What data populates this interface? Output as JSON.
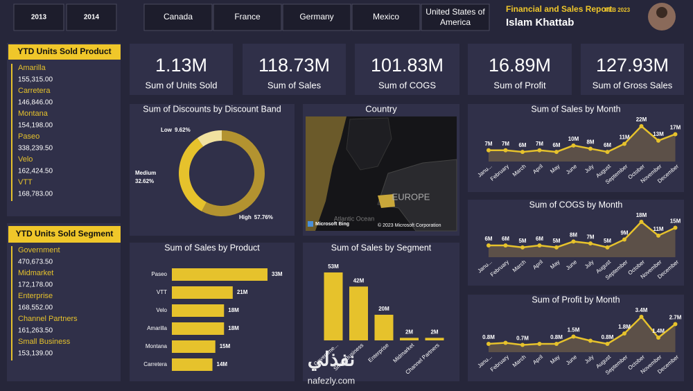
{
  "header": {
    "title": "Financial and Sales Report",
    "date": "FEB 2023",
    "author": "Islam Khattab"
  },
  "filters": {
    "years": [
      "2013",
      "2014"
    ],
    "countries": [
      "Canada",
      "France",
      "Germany",
      "Mexico",
      "United States of America"
    ]
  },
  "kpis": [
    {
      "value": "1.13M",
      "label": "Sum of Units Sold"
    },
    {
      "value": "118.73M",
      "label": "Sum of  Sales"
    },
    {
      "value": "101.83M",
      "label": "Sum of COGS"
    },
    {
      "value": "16.89M",
      "label": "Sum of Profit"
    },
    {
      "value": "127.93M",
      "label": "Sum of Gross Sales"
    }
  ],
  "product_list": {
    "title": "YTD Units Sold Product",
    "items": [
      {
        "name": "Amarilla",
        "value": "155,315.00"
      },
      {
        "name": "Carretera",
        "value": "146,846.00"
      },
      {
        "name": "Montana",
        "value": "154,198.00"
      },
      {
        "name": "Paseo",
        "value": "338,239.50"
      },
      {
        "name": "Velo",
        "value": "162,424.50"
      },
      {
        "name": "VTT",
        "value": "168,783.00"
      }
    ]
  },
  "segment_list": {
    "title": "YTD Units Sold Segment",
    "items": [
      {
        "name": "Government",
        "value": "470,673.50"
      },
      {
        "name": "Midmarket",
        "value": "172,178.00"
      },
      {
        "name": "Enterprise",
        "value": "168,552.00"
      },
      {
        "name": "Channel Partners",
        "value": "161,263.50"
      },
      {
        "name": "Small Business",
        "value": "153,139.00"
      }
    ]
  },
  "map": {
    "title": "Country",
    "region": "EUROPE",
    "ocean": "Atlantic Ocean",
    "provider": "Microsoft Bing",
    "copyright": "© 2023 Microsoft Corporation"
  },
  "watermark": {
    "arabic": "نفذلي",
    "site": "nafezly.com"
  },
  "chart_data": [
    {
      "type": "pie",
      "title": "Sum of Discounts by Discount Band",
      "categories": [
        "High",
        "Medium",
        "Low"
      ],
      "values": [
        57.76,
        32.62,
        9.62
      ],
      "value_labels": [
        "57.76%",
        "32.62%",
        "9.62%"
      ],
      "colors": [
        "#b39330",
        "#e6c22c",
        "#f1e2a0"
      ]
    },
    {
      "type": "bar",
      "horizontal": true,
      "title": "Sum of Sales by Product",
      "categories": [
        "Paseo",
        "VTT",
        "Velo",
        "Amarilla",
        "Montana",
        "Carretera"
      ],
      "values": [
        33,
        21,
        18,
        18,
        15,
        14
      ],
      "value_labels": [
        "33M",
        "21M",
        "18M",
        "18M",
        "15M",
        "14M"
      ],
      "color": "#e6c22c"
    },
    {
      "type": "bar",
      "title": "Sum of Sales by Segment",
      "categories": [
        "Governme...",
        "Small Business",
        "Enterprise",
        "Midmarket",
        "Channel Partners"
      ],
      "values": [
        53,
        42,
        20,
        2,
        2
      ],
      "value_labels": [
        "53M",
        "42M",
        "20M",
        "2M",
        "2M"
      ],
      "color": "#e6c22c"
    },
    {
      "type": "line",
      "title": "Sum of Sales by Month",
      "categories": [
        "Janu...",
        "February",
        "March",
        "April",
        "May",
        "June",
        "July",
        "August",
        "September",
        "October",
        "November",
        "December"
      ],
      "values": [
        7,
        7,
        6,
        7,
        6,
        10,
        8,
        6,
        11,
        22,
        13,
        17
      ],
      "value_labels": [
        "7M",
        "7M",
        "6M",
        "7M",
        "6M",
        "10M",
        "8M",
        "6M",
        "11M",
        "22M",
        "13M",
        "17M"
      ],
      "color": "#e6c22c"
    },
    {
      "type": "line",
      "title": "Sum of COGS by Month",
      "categories": [
        "Janu...",
        "February",
        "March",
        "April",
        "May",
        "June",
        "July",
        "August",
        "September",
        "October",
        "November",
        "December"
      ],
      "values": [
        6,
        6,
        5,
        6,
        5,
        8,
        7,
        5,
        9,
        18,
        11,
        15
      ],
      "value_labels": [
        "6M",
        "6M",
        "5M",
        "6M",
        "5M",
        "8M",
        "7M",
        "5M",
        "9M",
        "18M",
        "11M",
        "15M"
      ],
      "color": "#e6c22c"
    },
    {
      "type": "line",
      "title": "Sum of Profit by Month",
      "categories": [
        "Janu...",
        "February",
        "March",
        "April",
        "May",
        "June",
        "July",
        "August",
        "September",
        "October",
        "November",
        "December"
      ],
      "values": [
        0.8,
        0.9,
        0.7,
        0.8,
        0.8,
        1.5,
        1.1,
        0.8,
        1.8,
        3.4,
        1.4,
        2.7
      ],
      "value_labels": [
        "0.8M",
        null,
        "0.7M",
        null,
        "0.8M",
        "1.5M",
        null,
        "0.8M",
        "1.8M",
        "3.4M",
        "1.4M",
        "2.7M"
      ],
      "color": "#e6c22c"
    }
  ]
}
